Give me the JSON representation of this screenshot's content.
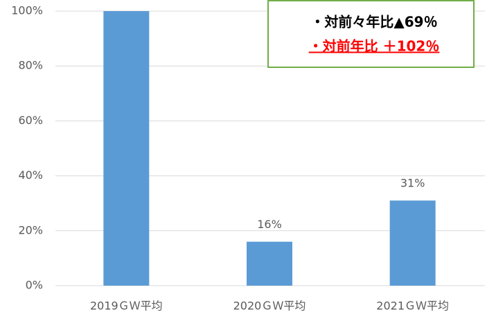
{
  "chart_data": {
    "type": "bar",
    "categories": [
      "2019ＧＷ平均",
      "2020ＧＷ平均",
      "2021ＧＷ平均"
    ],
    "values": [
      100,
      16,
      31
    ],
    "value_labels": [
      null,
      "16%",
      "31%"
    ],
    "color": "#5b9bd5",
    "ylim": [
      0,
      100
    ],
    "yticks": [
      {
        "value": 0,
        "label": "0%"
      },
      {
        "value": 20,
        "label": "20%"
      },
      {
        "value": 40,
        "label": "40%"
      },
      {
        "value": 60,
        "label": "60%"
      },
      {
        "value": 80,
        "label": "80%"
      },
      {
        "value": 100,
        "label": "100%"
      }
    ],
    "grid": true,
    "annotations": [
      "・対前々年比▲69％",
      "・対前年比 ＋102％"
    ]
  }
}
